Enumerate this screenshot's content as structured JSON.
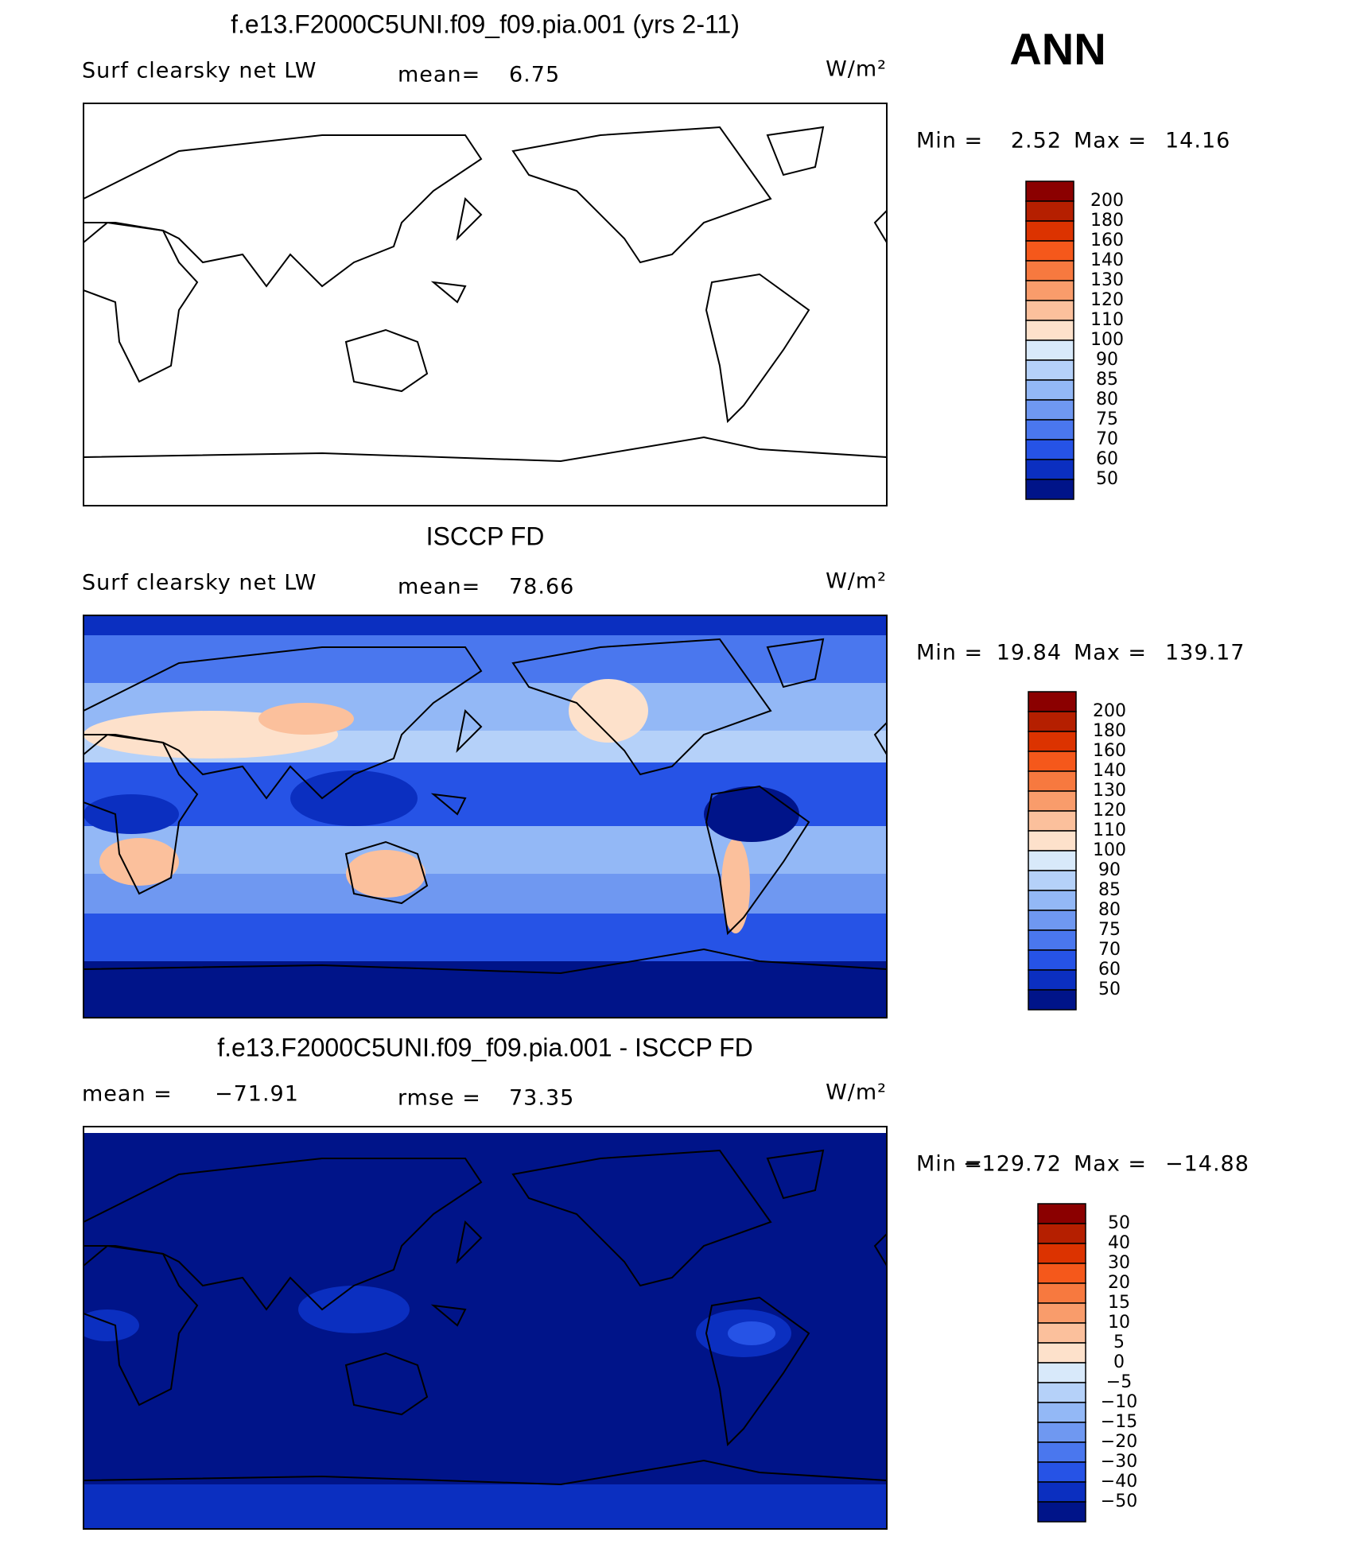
{
  "header": {
    "season": "ANN"
  },
  "palette": [
    "#8b0000",
    "#b51f00",
    "#dc3300",
    "#f5581b",
    "#f7793f",
    "#f99c6b",
    "#fbc09c",
    "#fde1cb",
    "#d8e9fa",
    "#b5d1f9",
    "#93b8f6",
    "#6f98f1",
    "#4a77ee",
    "#2653e6",
    "#0b2fc0",
    "#001489"
  ],
  "panels": [
    {
      "title": "f.e13.F2000C5UNI.f09_f09.pia.001 (yrs 2-11)",
      "left_label": "Surf clearsky net LW",
      "center_label": "mean=",
      "center_value": "6.75",
      "units": "W/m²",
      "min_label": "Min =",
      "min": "2.52",
      "max_label": "Max =",
      "max": "14.16",
      "levels": [
        200,
        180,
        160,
        140,
        130,
        120,
        110,
        100,
        90,
        85,
        80,
        75,
        70,
        60,
        50
      ]
    },
    {
      "title": "ISCCP FD",
      "left_label": "Surf clearsky net LW",
      "center_label": "mean=",
      "center_value": "78.66",
      "units": "W/m²",
      "min_label": "Min =",
      "min": "19.84",
      "max_label": "Max =",
      "max": "139.17",
      "levels": [
        200,
        180,
        160,
        140,
        130,
        120,
        110,
        100,
        90,
        85,
        80,
        75,
        70,
        60,
        50
      ]
    },
    {
      "title": "f.e13.F2000C5UNI.f09_f09.pia.001 - ISCCP FD",
      "left_label": "mean =",
      "left_value": "−71.91",
      "center_label": "rmse =",
      "center_value": "73.35",
      "units": "W/m²",
      "min_label": "Min =",
      "min": "−129.72",
      "max_label": "Max =",
      "max": "−14.88",
      "levels": [
        "50",
        "40",
        "30",
        "20",
        "15",
        "10",
        "5",
        "0",
        "−5",
        "−10",
        "−15",
        "−20",
        "−30",
        "−40",
        "−50"
      ]
    }
  ]
}
